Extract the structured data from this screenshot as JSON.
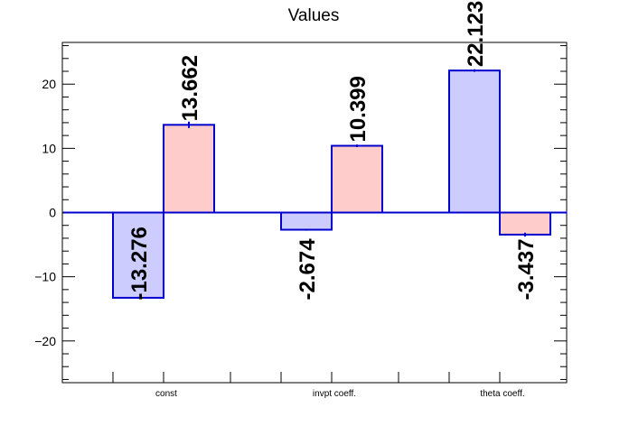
{
  "chart_data": {
    "type": "bar",
    "title": "Values",
    "categories": [
      "const",
      "invpt coeff.",
      "theta coeff."
    ],
    "series": [
      {
        "values": [
          -13.276,
          -2.674,
          22.123
        ],
        "errors": [
          0.15,
          0.15,
          0.2
        ],
        "fill": "#ccccff",
        "stroke": "#0000cc"
      },
      {
        "values": [
          13.662,
          10.399,
          -3.437
        ],
        "errors": [
          0.5,
          0.2,
          0.3
        ],
        "fill": "#ffcccc",
        "stroke": "#0000cc"
      }
    ],
    "data_labels": [
      [
        "-13.276",
        "-2.674",
        "22.123"
      ],
      [
        "13.662",
        "10.399",
        "-3.437"
      ]
    ],
    "ylim": [
      -26.5,
      26.5
    ],
    "yticks": [
      -20,
      -10,
      0,
      10,
      20
    ],
    "yticks_labels": [
      "−20",
      "−10",
      "0",
      "10",
      "20"
    ],
    "xlabel": "",
    "ylabel": "",
    "grid": false,
    "legend": "none"
  }
}
